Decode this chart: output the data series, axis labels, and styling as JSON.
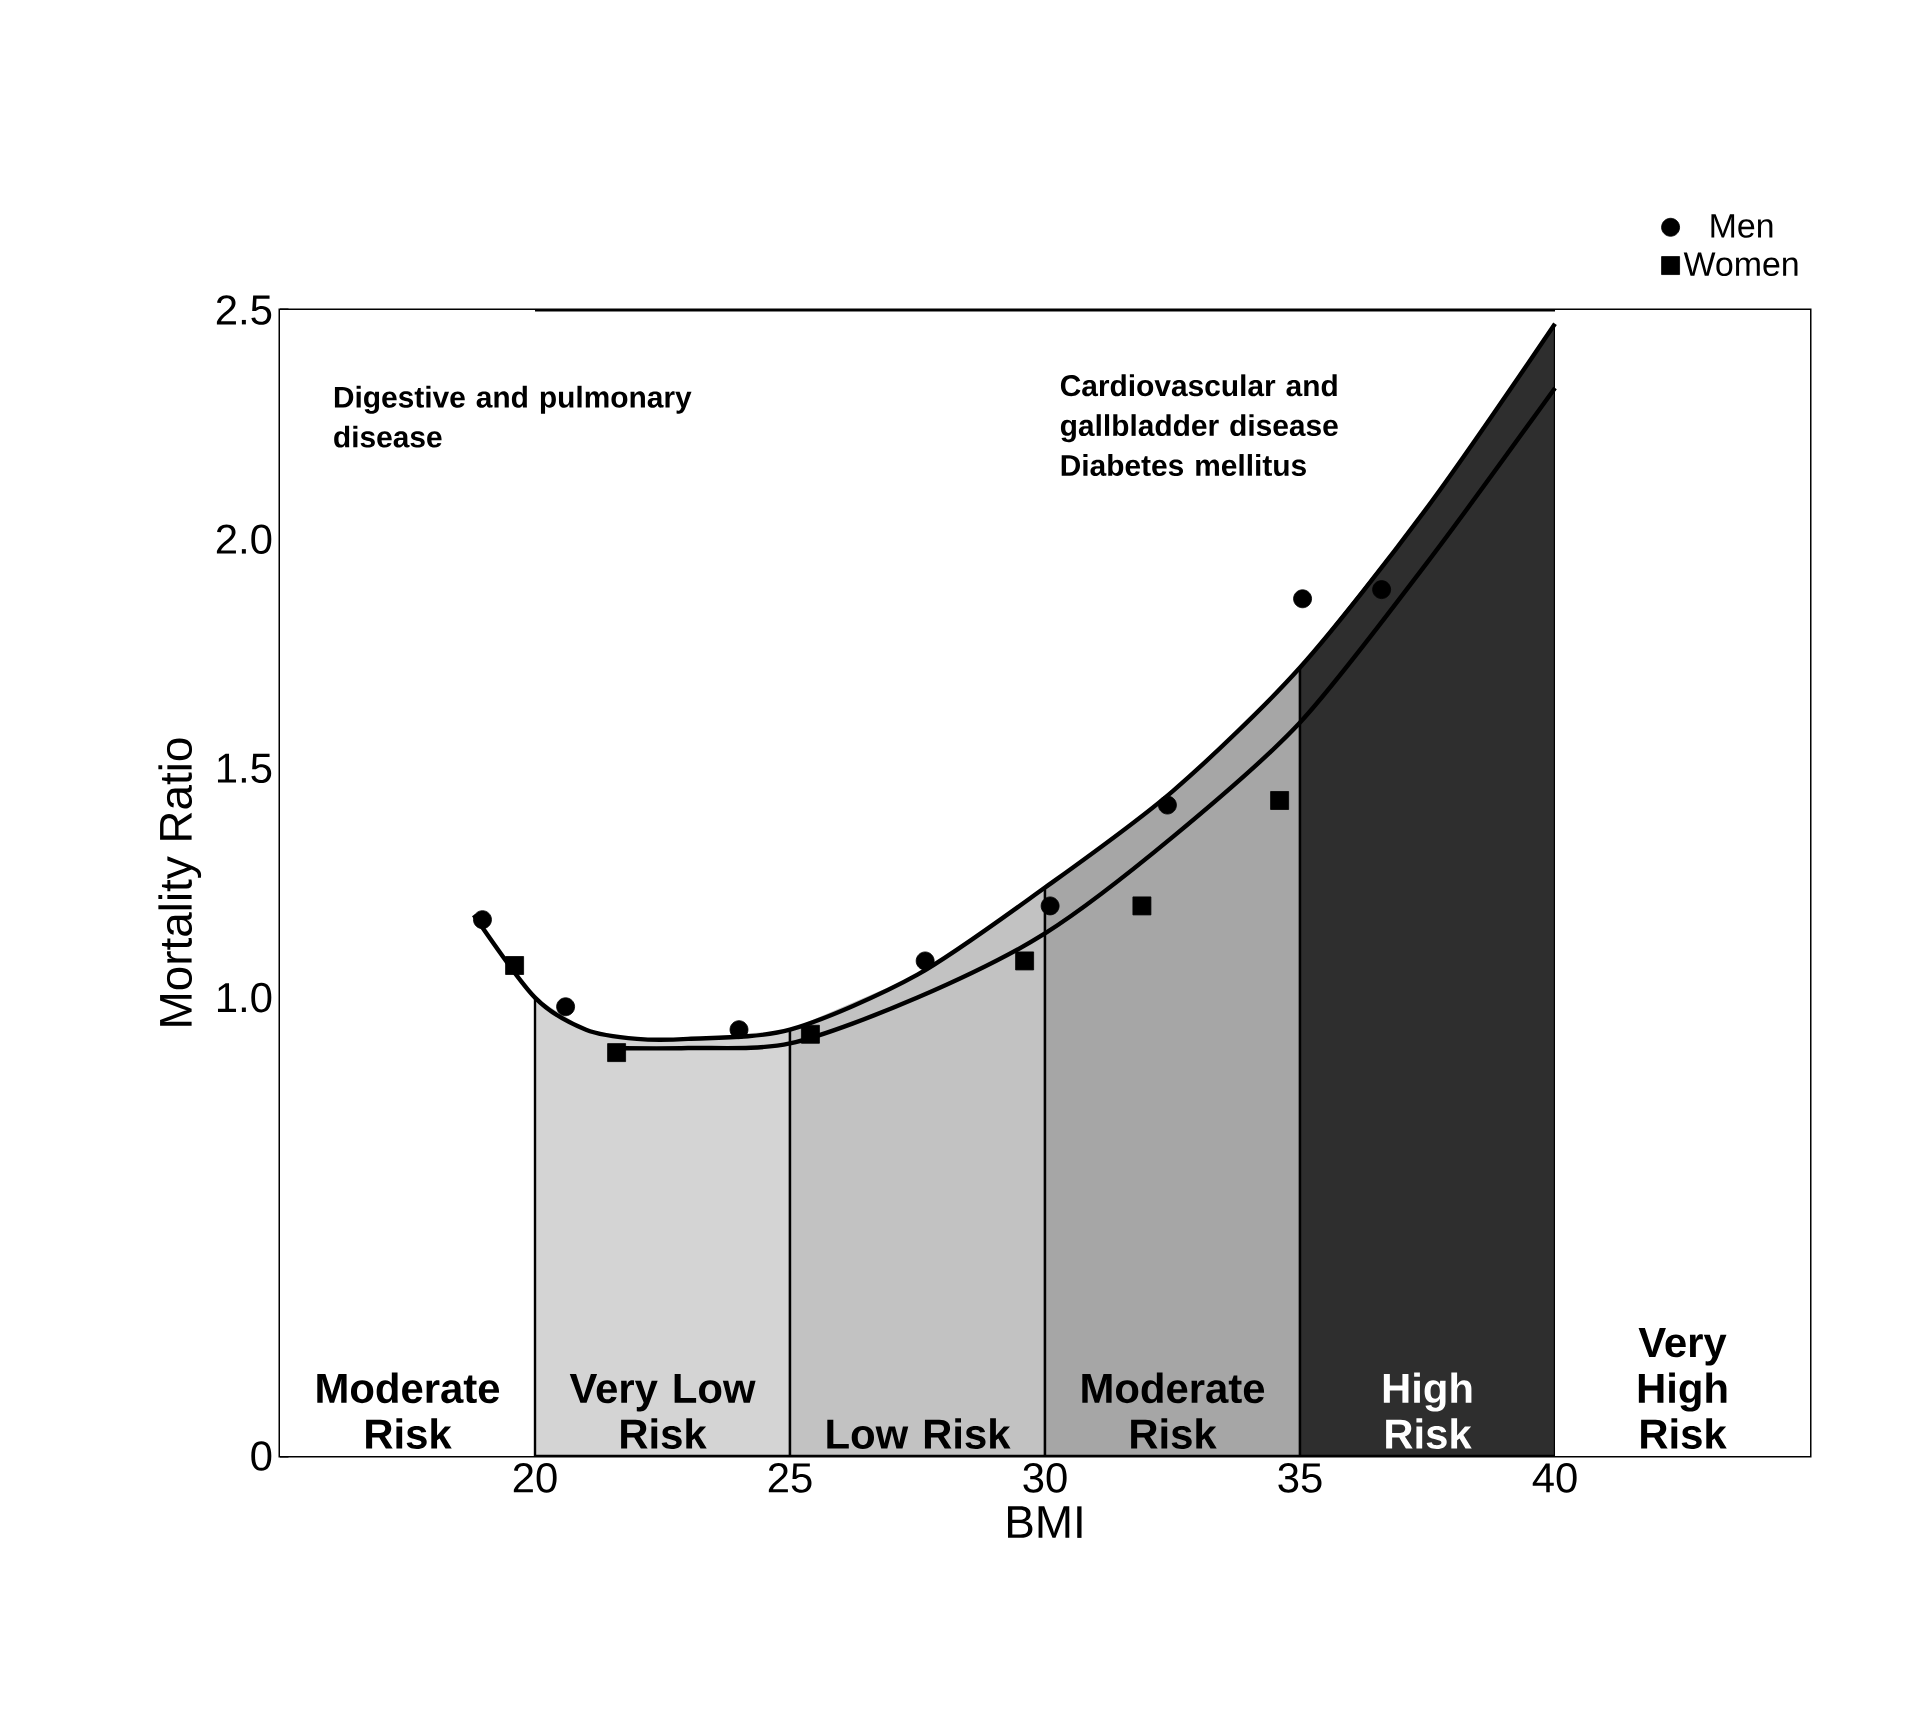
{
  "chart_data": {
    "type": "scatter",
    "xlabel": "BMI",
    "ylabel": "Mortality Ratio",
    "xlim": [
      15,
      45
    ],
    "ylim": [
      0,
      2.5
    ],
    "xticks": [
      20,
      25,
      30,
      35,
      40
    ],
    "yticks": [
      0,
      {
        "value": 1,
        "label": "1.0"
      },
      {
        "value": 1.5,
        "label": "1.5"
      },
      {
        "value": 2,
        "label": "2.0"
      },
      {
        "value": 2.5,
        "label": "2.5"
      }
    ],
    "series": [
      {
        "name": "Men",
        "marker": "circle",
        "color": "#000000",
        "x": [
          18.97,
          20.6,
          24.0,
          27.65,
          30.1,
          32.4,
          35.05,
          36.6
        ],
        "values": [
          1.17,
          0.98,
          0.93,
          1.08,
          1.2,
          1.42,
          1.87,
          1.89
        ]
      },
      {
        "name": "Women",
        "marker": "square",
        "color": "#000000",
        "x": [
          19.6,
          21.6,
          25.4,
          29.6,
          31.9,
          34.6
        ],
        "values": [
          1.07,
          0.88,
          0.92,
          1.08,
          1.2,
          1.43
        ]
      },
      {
        "type": "line",
        "line_style": "solid",
        "color": "#000000",
        "x": [
          18.8,
          20,
          21,
          22,
          23,
          25,
          27.5,
          30,
          32.5,
          35,
          37.5,
          40
        ],
        "values": [
          1.18,
          1.0,
          0.93,
          0.91,
          0.91,
          0.93,
          1.05,
          1.24,
          1.45,
          1.72,
          2.07,
          2.47
        ]
      },
      {
        "type": "line",
        "line_style": "solid",
        "color": "#000000",
        "x": [
          21.5,
          23,
          25,
          27.5,
          30,
          32.5,
          35,
          37.5,
          40
        ],
        "values": [
          0.89,
          0.89,
          0.9,
          1.0,
          1.14,
          1.35,
          1.6,
          1.95,
          2.33
        ]
      }
    ],
    "bands": [
      {
        "axis": "x",
        "from": 15,
        "to": 20,
        "label": "Moderate Risk",
        "color": "#ffffff"
      },
      {
        "axis": "x",
        "from": 20,
        "to": 25,
        "label": "Very Low Risk",
        "color": "#d4d4d4"
      },
      {
        "axis": "x",
        "from": 25,
        "to": 30,
        "label": "Low Risk",
        "color": "#c2c2c2"
      },
      {
        "axis": "x",
        "from": 30,
        "to": 35,
        "label": "Moderate Risk",
        "color": "#a6a6a6"
      },
      {
        "axis": "x",
        "from": 35,
        "to": 40,
        "label": "High Risk",
        "color": "#2e2e2e"
      },
      {
        "axis": "x",
        "from": 40,
        "to": 45,
        "label": "Very High Risk",
        "color": "#ffffff"
      }
    ],
    "annotations": [
      "Digestive and pulmonary disease",
      "Cardiovascular and gallbladder disease Diabetes mellitus"
    ],
    "legend": "top right"
  }
}
